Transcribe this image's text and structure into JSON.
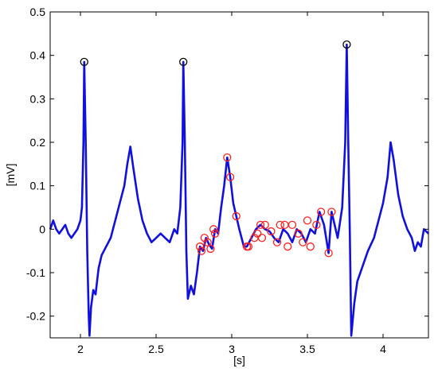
{
  "chart_data": {
    "type": "line",
    "title": "",
    "xlabel": "[s]",
    "ylabel": "[mV]",
    "xlim": [
      1.8,
      4.3
    ],
    "ylim": [
      -0.25,
      0.5
    ],
    "xticks": [
      2,
      2.5,
      3,
      3.5,
      4
    ],
    "yticks": [
      -0.2,
      -0.1,
      0,
      0.1,
      0.2,
      0.3,
      0.4,
      0.5
    ],
    "xtick_labels": [
      "2",
      "2.5",
      "3",
      "3.5",
      "4"
    ],
    "ytick_labels": [
      "-0.2",
      "-0.1",
      "0",
      "0.1",
      "0.2",
      "0.3",
      "0.4",
      "0.5"
    ],
    "grid": false,
    "colors": {
      "signal": "#1010e0",
      "r_peak_marker": "#000000",
      "detection_marker": "#ff2020"
    },
    "series": [
      {
        "values": [
          [
            1.8,
            0.0
          ],
          [
            1.82,
            0.02
          ],
          [
            1.84,
            0.0
          ],
          [
            1.86,
            -0.01
          ],
          [
            1.88,
            0.0
          ],
          [
            1.9,
            0.01
          ],
          [
            1.92,
            -0.01
          ],
          [
            1.94,
            -0.02
          ],
          [
            1.96,
            -0.01
          ],
          [
            1.98,
            0.0
          ],
          [
            2.0,
            0.02
          ],
          [
            2.01,
            0.05
          ],
          [
            2.02,
            0.2
          ],
          [
            2.025,
            0.385
          ],
          [
            2.035,
            0.2
          ],
          [
            2.045,
            -0.05
          ],
          [
            2.055,
            -0.2
          ],
          [
            2.06,
            -0.245
          ],
          [
            2.07,
            -0.18
          ],
          [
            2.085,
            -0.14
          ],
          [
            2.1,
            -0.15
          ],
          [
            2.12,
            -0.09
          ],
          [
            2.14,
            -0.06
          ],
          [
            2.17,
            -0.04
          ],
          [
            2.2,
            -0.02
          ],
          [
            2.23,
            0.02
          ],
          [
            2.26,
            0.06
          ],
          [
            2.29,
            0.1
          ],
          [
            2.31,
            0.15
          ],
          [
            2.33,
            0.19
          ],
          [
            2.35,
            0.14
          ],
          [
            2.38,
            0.07
          ],
          [
            2.41,
            0.02
          ],
          [
            2.44,
            -0.01
          ],
          [
            2.47,
            -0.03
          ],
          [
            2.5,
            -0.02
          ],
          [
            2.53,
            -0.01
          ],
          [
            2.56,
            -0.02
          ],
          [
            2.59,
            -0.03
          ],
          [
            2.62,
            0.0
          ],
          [
            2.64,
            -0.01
          ],
          [
            2.66,
            0.05
          ],
          [
            2.675,
            0.2
          ],
          [
            2.68,
            0.385
          ],
          [
            2.69,
            0.2
          ],
          [
            2.7,
            -0.05
          ],
          [
            2.71,
            -0.16
          ],
          [
            2.73,
            -0.13
          ],
          [
            2.75,
            -0.15
          ],
          [
            2.77,
            -0.1
          ],
          [
            2.79,
            -0.04
          ],
          [
            2.81,
            -0.05
          ],
          [
            2.83,
            -0.02
          ],
          [
            2.85,
            -0.035
          ],
          [
            2.87,
            -0.045
          ],
          [
            2.89,
            0.0
          ],
          [
            2.91,
            -0.01
          ],
          [
            2.93,
            0.05
          ],
          [
            2.95,
            0.1
          ],
          [
            2.97,
            0.165
          ],
          [
            2.99,
            0.12
          ],
          [
            3.01,
            0.06
          ],
          [
            3.03,
            0.03
          ],
          [
            3.05,
            0.0
          ],
          [
            3.08,
            -0.04
          ],
          [
            3.1,
            -0.04
          ],
          [
            3.13,
            -0.02
          ],
          [
            3.16,
            0.0
          ],
          [
            3.19,
            0.01
          ],
          [
            3.22,
            0.0
          ],
          [
            3.25,
            -0.005
          ],
          [
            3.28,
            -0.02
          ],
          [
            3.31,
            -0.03
          ],
          [
            3.34,
            0.0
          ],
          [
            3.37,
            -0.01
          ],
          [
            3.4,
            -0.03
          ],
          [
            3.43,
            0.0
          ],
          [
            3.46,
            -0.01
          ],
          [
            3.49,
            -0.03
          ],
          [
            3.52,
            0.0
          ],
          [
            3.55,
            -0.01
          ],
          [
            3.58,
            0.04
          ],
          [
            3.61,
            0.01
          ],
          [
            3.64,
            -0.055
          ],
          [
            3.66,
            0.04
          ],
          [
            3.68,
            0.01
          ],
          [
            3.7,
            -0.02
          ],
          [
            3.73,
            0.05
          ],
          [
            3.75,
            0.2
          ],
          [
            3.76,
            0.425
          ],
          [
            3.77,
            0.2
          ],
          [
            3.78,
            0.0
          ],
          [
            3.79,
            -0.245
          ],
          [
            3.81,
            -0.17
          ],
          [
            3.83,
            -0.12
          ],
          [
            3.86,
            -0.09
          ],
          [
            3.9,
            -0.05
          ],
          [
            3.94,
            -0.02
          ],
          [
            3.97,
            0.02
          ],
          [
            4.0,
            0.06
          ],
          [
            4.03,
            0.12
          ],
          [
            4.05,
            0.2
          ],
          [
            4.07,
            0.16
          ],
          [
            4.1,
            0.08
          ],
          [
            4.13,
            0.03
          ],
          [
            4.16,
            0.0
          ],
          [
            4.19,
            -0.02
          ],
          [
            4.21,
            -0.05
          ],
          [
            4.23,
            -0.03
          ],
          [
            4.25,
            -0.04
          ],
          [
            4.27,
            0.0
          ],
          [
            4.3,
            -0.01
          ]
        ]
      }
    ],
    "r_peaks": [
      [
        2.025,
        0.385
      ],
      [
        2.68,
        0.385
      ],
      [
        3.76,
        0.425
      ]
    ],
    "detections": [
      [
        2.79,
        -0.04
      ],
      [
        2.8,
        -0.05
      ],
      [
        2.82,
        -0.02
      ],
      [
        2.84,
        -0.03
      ],
      [
        2.86,
        -0.045
      ],
      [
        2.88,
        0.0
      ],
      [
        2.89,
        -0.01
      ],
      [
        2.97,
        0.165
      ],
      [
        2.99,
        0.12
      ],
      [
        3.03,
        0.03
      ],
      [
        3.1,
        -0.04
      ],
      [
        3.11,
        -0.04
      ],
      [
        3.15,
        -0.02
      ],
      [
        3.17,
        -0.01
      ],
      [
        3.19,
        0.01
      ],
      [
        3.2,
        -0.02
      ],
      [
        3.22,
        0.01
      ],
      [
        3.26,
        -0.005
      ],
      [
        3.3,
        -0.03
      ],
      [
        3.32,
        0.01
      ],
      [
        3.35,
        0.01
      ],
      [
        3.37,
        -0.04
      ],
      [
        3.4,
        0.01
      ],
      [
        3.44,
        -0.01
      ],
      [
        3.47,
        -0.03
      ],
      [
        3.5,
        0.02
      ],
      [
        3.52,
        -0.04
      ],
      [
        3.56,
        0.01
      ],
      [
        3.59,
        0.04
      ],
      [
        3.64,
        -0.055
      ],
      [
        3.66,
        0.04
      ]
    ]
  }
}
